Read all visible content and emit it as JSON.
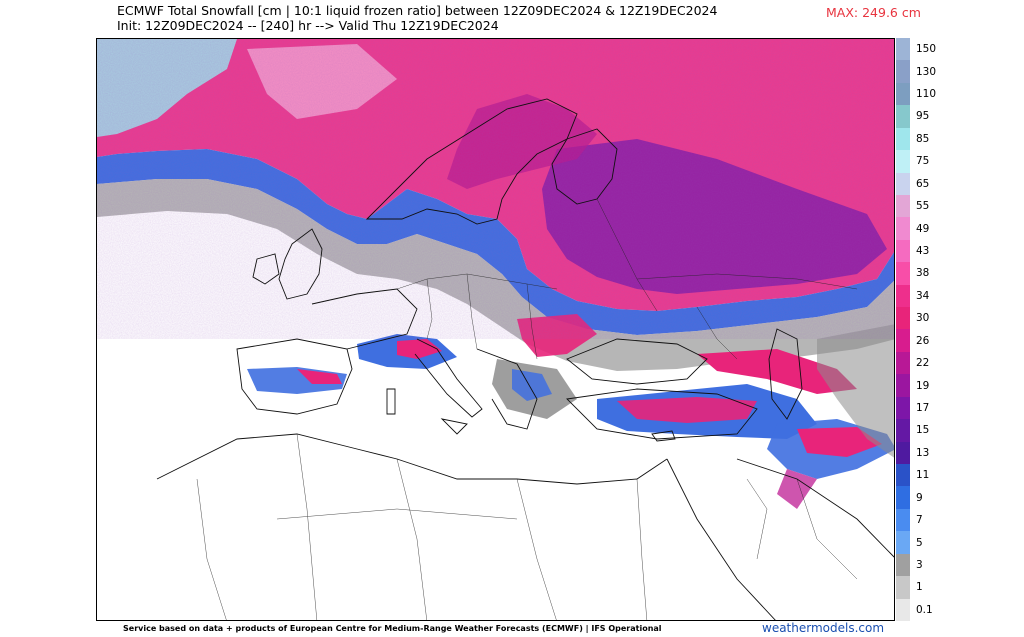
{
  "header": {
    "title_line1": "ECMWF Total Snowfall [cm | 10:1 liquid frozen ratio] between 12Z09DEC2024 & 12Z19DEC2024",
    "title_line2": "Init: 12Z09DEC2024 -- [240] hr --> Valid Thu 12Z19DEC2024",
    "max_label": "MAX: 249.6 cm"
  },
  "colorbar": {
    "labels": [
      "150",
      "130",
      "110",
      "95",
      "85",
      "75",
      "65",
      "55",
      "49",
      "43",
      "38",
      "34",
      "30",
      "26",
      "22",
      "19",
      "17",
      "15",
      "13",
      "11",
      "9",
      "7",
      "5",
      "3",
      "1",
      "0.1"
    ],
    "colors": [
      "#9db4d6",
      "#8aa0c8",
      "#7d9ec0",
      "#86c8cc",
      "#9fe6ec",
      "#bff0f6",
      "#c9d3ee",
      "#e3a6d6",
      "#f08ad0",
      "#f56bc0",
      "#f84ea8",
      "#ee2f8c",
      "#e8247a",
      "#d81c8e",
      "#b81896",
      "#9b16a0",
      "#7d16a8",
      "#6418a4",
      "#4f1aa0",
      "#2a52c8",
      "#2f6ee2",
      "#4a8cf0",
      "#6aa8f4",
      "#a0a0a0",
      "#c8c8c8",
      "#e8e8e8"
    ]
  },
  "footer": {
    "credit": "Service based on data + products of European Centre for Medium-Range Weather Forecasts (ECMWF) | IFS Operational",
    "brand": "weathermodels.com"
  }
}
